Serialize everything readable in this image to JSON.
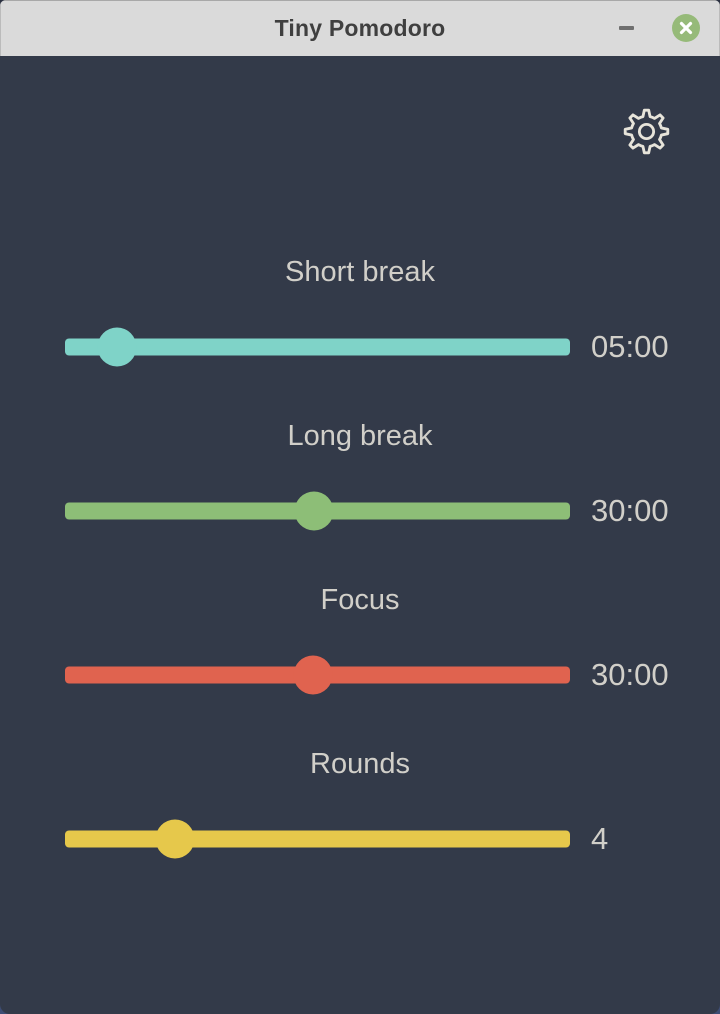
{
  "window": {
    "title": "Tiny Pomodoro"
  },
  "colors": {
    "background": "#333A49",
    "titlebar_bg": "#DADADA",
    "titlebar_text": "#3F3F3F",
    "label_text": "#D1CFC9",
    "close_button_bg": "#96BA79",
    "gear_stroke": "#E7E4DA",
    "desktop_corner": "#3E4D74"
  },
  "sliders": [
    {
      "id": "short-break",
      "label": "Short break",
      "value": "05:00",
      "color": "#7FD3C8",
      "percent": 10.3
    },
    {
      "id": "long-break",
      "label": "Long break",
      "value": "30:00",
      "color": "#8DBE77",
      "percent": 49.3
    },
    {
      "id": "focus",
      "label": "Focus",
      "value": "30:00",
      "color": "#E0634F",
      "percent": 49.1
    },
    {
      "id": "rounds",
      "label": "Rounds",
      "value": "4",
      "color": "#E6C84B",
      "percent": 21.8
    }
  ]
}
